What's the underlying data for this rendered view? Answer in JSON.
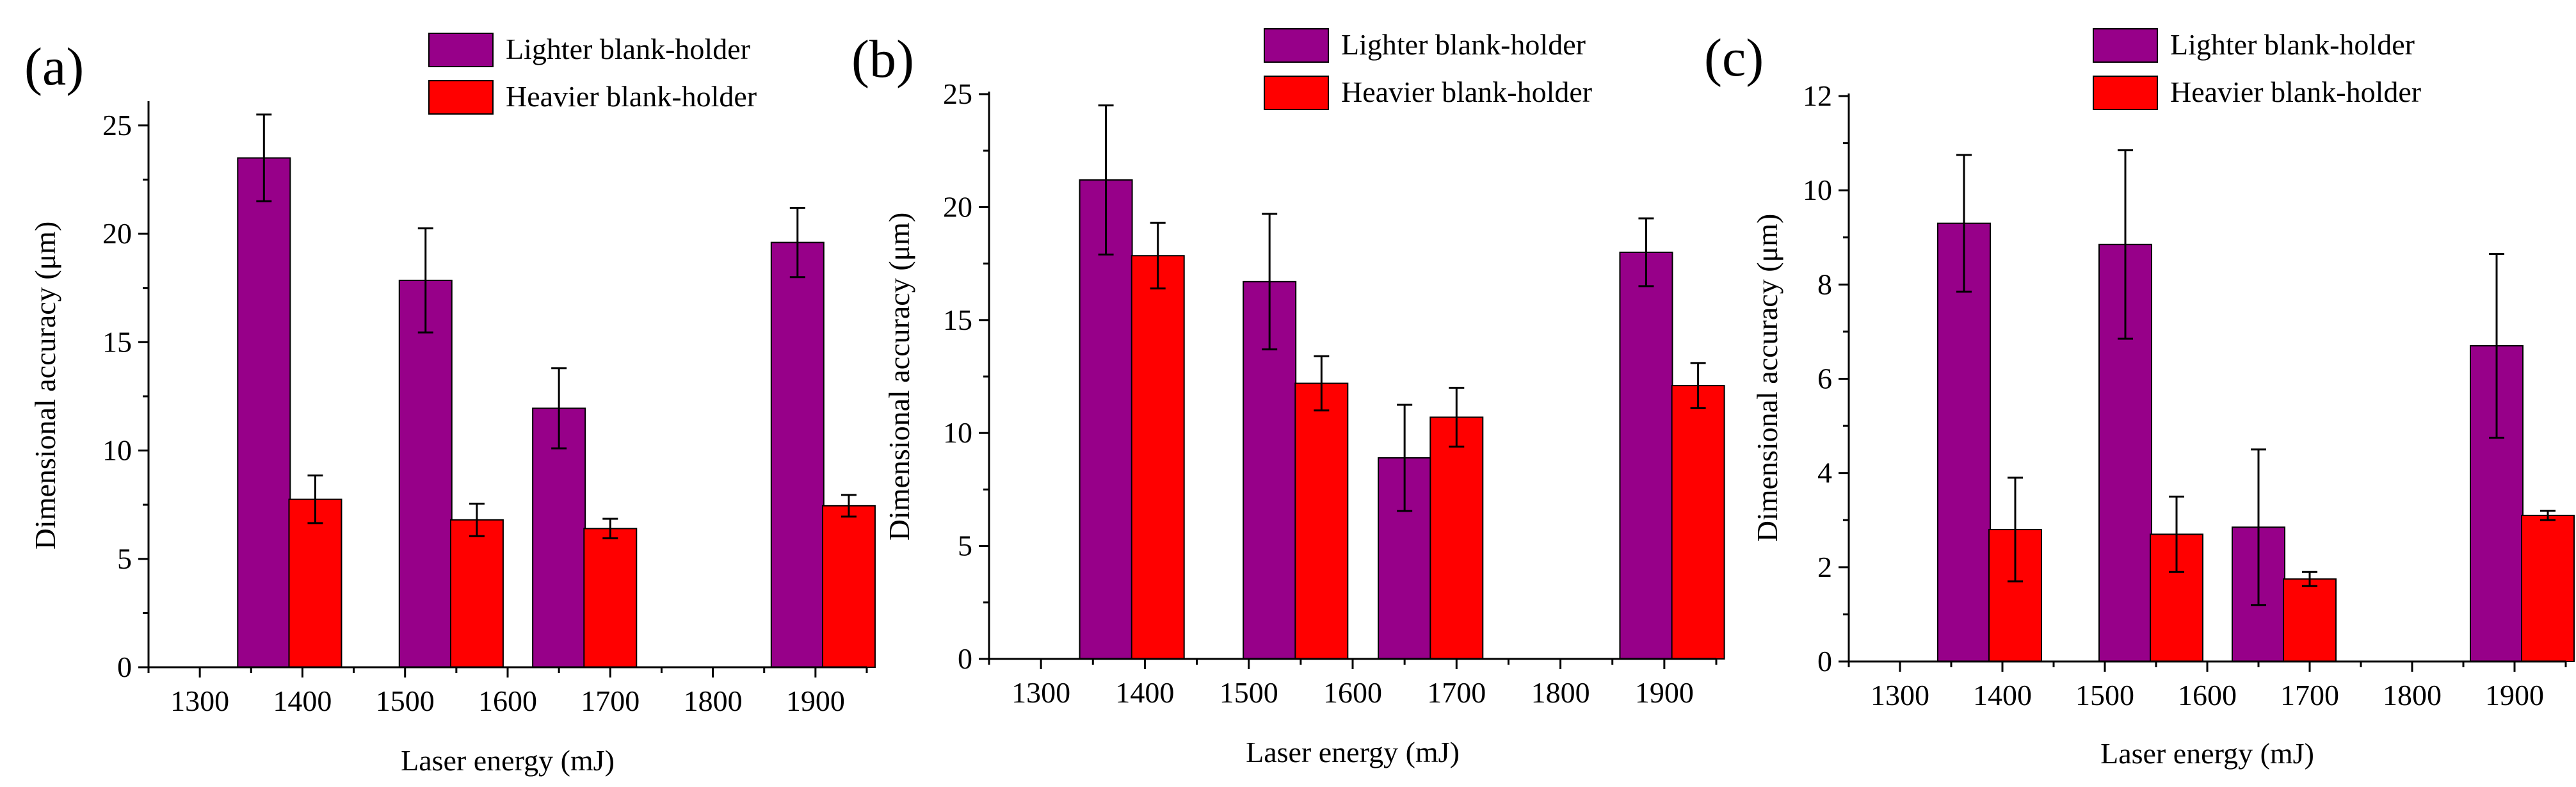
{
  "colors": {
    "lighter": "#970089",
    "heavier": "#ff0000",
    "axis": "#000000",
    "background": "#ffffff"
  },
  "chart_data": [
    {
      "type": "bar",
      "panel_label": "(a)",
      "xlabel": "Laser energy (mJ)",
      "ylabel": "Dimensional accuracy (μm)",
      "xlim": [
        1250,
        1950
      ],
      "ylim": [
        0,
        26
      ],
      "xticks": [
        "1300",
        "1400",
        "1500",
        "1600",
        "1700",
        "1800",
        "1900"
      ],
      "yticks": [
        "0",
        "5",
        "10",
        "15",
        "20",
        "25"
      ],
      "categories": [
        "1400",
        "1600",
        "1700",
        "1900"
      ],
      "category_centers": [
        1400,
        1600,
        1700,
        1900
      ],
      "legend": {
        "position": "top-right"
      },
      "series": [
        {
          "name": "Lighter blank-holder",
          "color_key": "lighter",
          "centers": [
            1362.5,
            1520,
            1650,
            1882.5
          ],
          "values": [
            23.5,
            17.85,
            11.95,
            19.6
          ],
          "errors": [
            2.0,
            2.4,
            1.85,
            1.6
          ]
        },
        {
          "name": "Heavier blank-holder",
          "color_key": "heavier",
          "centers": [
            1412.5,
            1570,
            1700,
            1932.5
          ],
          "values": [
            7.75,
            6.8,
            6.4,
            7.45
          ],
          "errors": [
            1.1,
            0.75,
            0.45,
            0.5
          ]
        }
      ]
    },
    {
      "type": "bar",
      "panel_label": "(b)",
      "xlabel": "Laser energy (mJ)",
      "ylabel": "Dimensional accuracy (μm)",
      "xlim": [
        1250,
        1950
      ],
      "ylim": [
        0,
        25
      ],
      "xticks": [
        "1300",
        "1400",
        "1500",
        "1600",
        "1700",
        "1800",
        "1900"
      ],
      "yticks": [
        "0",
        "5",
        "10",
        "15",
        "20",
        "25"
      ],
      "categories": [
        "1400",
        "1600",
        "1700",
        "1900"
      ],
      "category_centers": [
        1400,
        1600,
        1700,
        1900
      ],
      "legend": {
        "position": "top-right"
      },
      "series": [
        {
          "name": "Lighter blank-holder",
          "color_key": "lighter",
          "centers": [
            1362.5,
            1520,
            1650,
            1882.5
          ],
          "values": [
            21.2,
            16.7,
            8.9,
            18.0
          ],
          "errors": [
            3.3,
            3.0,
            2.35,
            1.5
          ]
        },
        {
          "name": "Heavier blank-holder",
          "color_key": "heavier",
          "centers": [
            1412.5,
            1570,
            1700,
            1932.5
          ],
          "values": [
            17.85,
            12.2,
            10.7,
            12.1
          ],
          "errors": [
            1.45,
            1.2,
            1.3,
            1.0
          ]
        }
      ]
    },
    {
      "type": "bar",
      "panel_label": "(c)",
      "xlabel": "Laser energy (mJ)",
      "ylabel": "Dimensional accuracy (μm)",
      "xlim": [
        1250,
        1950
      ],
      "ylim": [
        0,
        12
      ],
      "xticks": [
        "1300",
        "1400",
        "1500",
        "1600",
        "1700",
        "1800",
        "1900"
      ],
      "yticks": [
        "0",
        "2",
        "4",
        "6",
        "8",
        "10",
        "12"
      ],
      "categories": [
        "1400",
        "1600",
        "1700",
        "1900"
      ],
      "category_centers": [
        1400,
        1600,
        1700,
        1900
      ],
      "legend": {
        "position": "top-right"
      },
      "series": [
        {
          "name": "Lighter blank-holder",
          "color_key": "lighter",
          "centers": [
            1362.5,
            1520,
            1650,
            1882.5
          ],
          "values": [
            9.3,
            8.85,
            2.85,
            6.7
          ],
          "errors": [
            1.45,
            2.0,
            1.65,
            1.95
          ]
        },
        {
          "name": "Heavier blank-holder",
          "color_key": "heavier",
          "centers": [
            1412.5,
            1570,
            1700,
            1932.5
          ],
          "values": [
            2.8,
            2.7,
            1.75,
            3.1
          ],
          "errors": [
            1.1,
            0.8,
            0.15,
            0.1
          ]
        }
      ]
    }
  ]
}
